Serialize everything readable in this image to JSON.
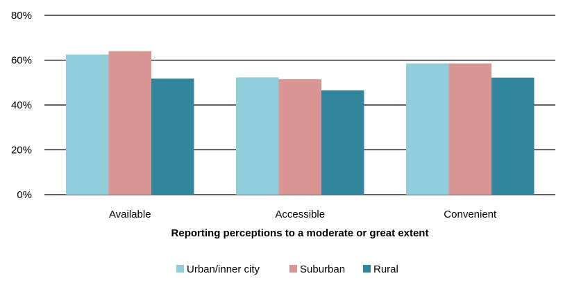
{
  "chart_data": {
    "type": "bar",
    "title": "",
    "xlabel": "Reporting perceptions to a moderate or great extent",
    "ylabel": "",
    "categories": [
      "Available",
      "Accessible",
      "Convenient"
    ],
    "series": [
      {
        "name": "Urban/inner city",
        "values": [
          62.5,
          52.3,
          58.5
        ],
        "color": "#92CDDC"
      },
      {
        "name": "Suburban",
        "values": [
          64.0,
          51.5,
          58.5
        ],
        "color": "#D99694"
      },
      {
        "name": "Rural",
        "values": [
          51.8,
          46.5,
          52.2
        ],
        "color": "#31869B"
      }
    ],
    "ylim": [
      0,
      80
    ],
    "yticks": [
      0,
      20,
      40,
      60,
      80
    ],
    "ytick_labels": [
      "0%",
      "20%",
      "40%",
      "60%",
      "80%"
    ],
    "grid": true,
    "legend_position": "bottom"
  }
}
